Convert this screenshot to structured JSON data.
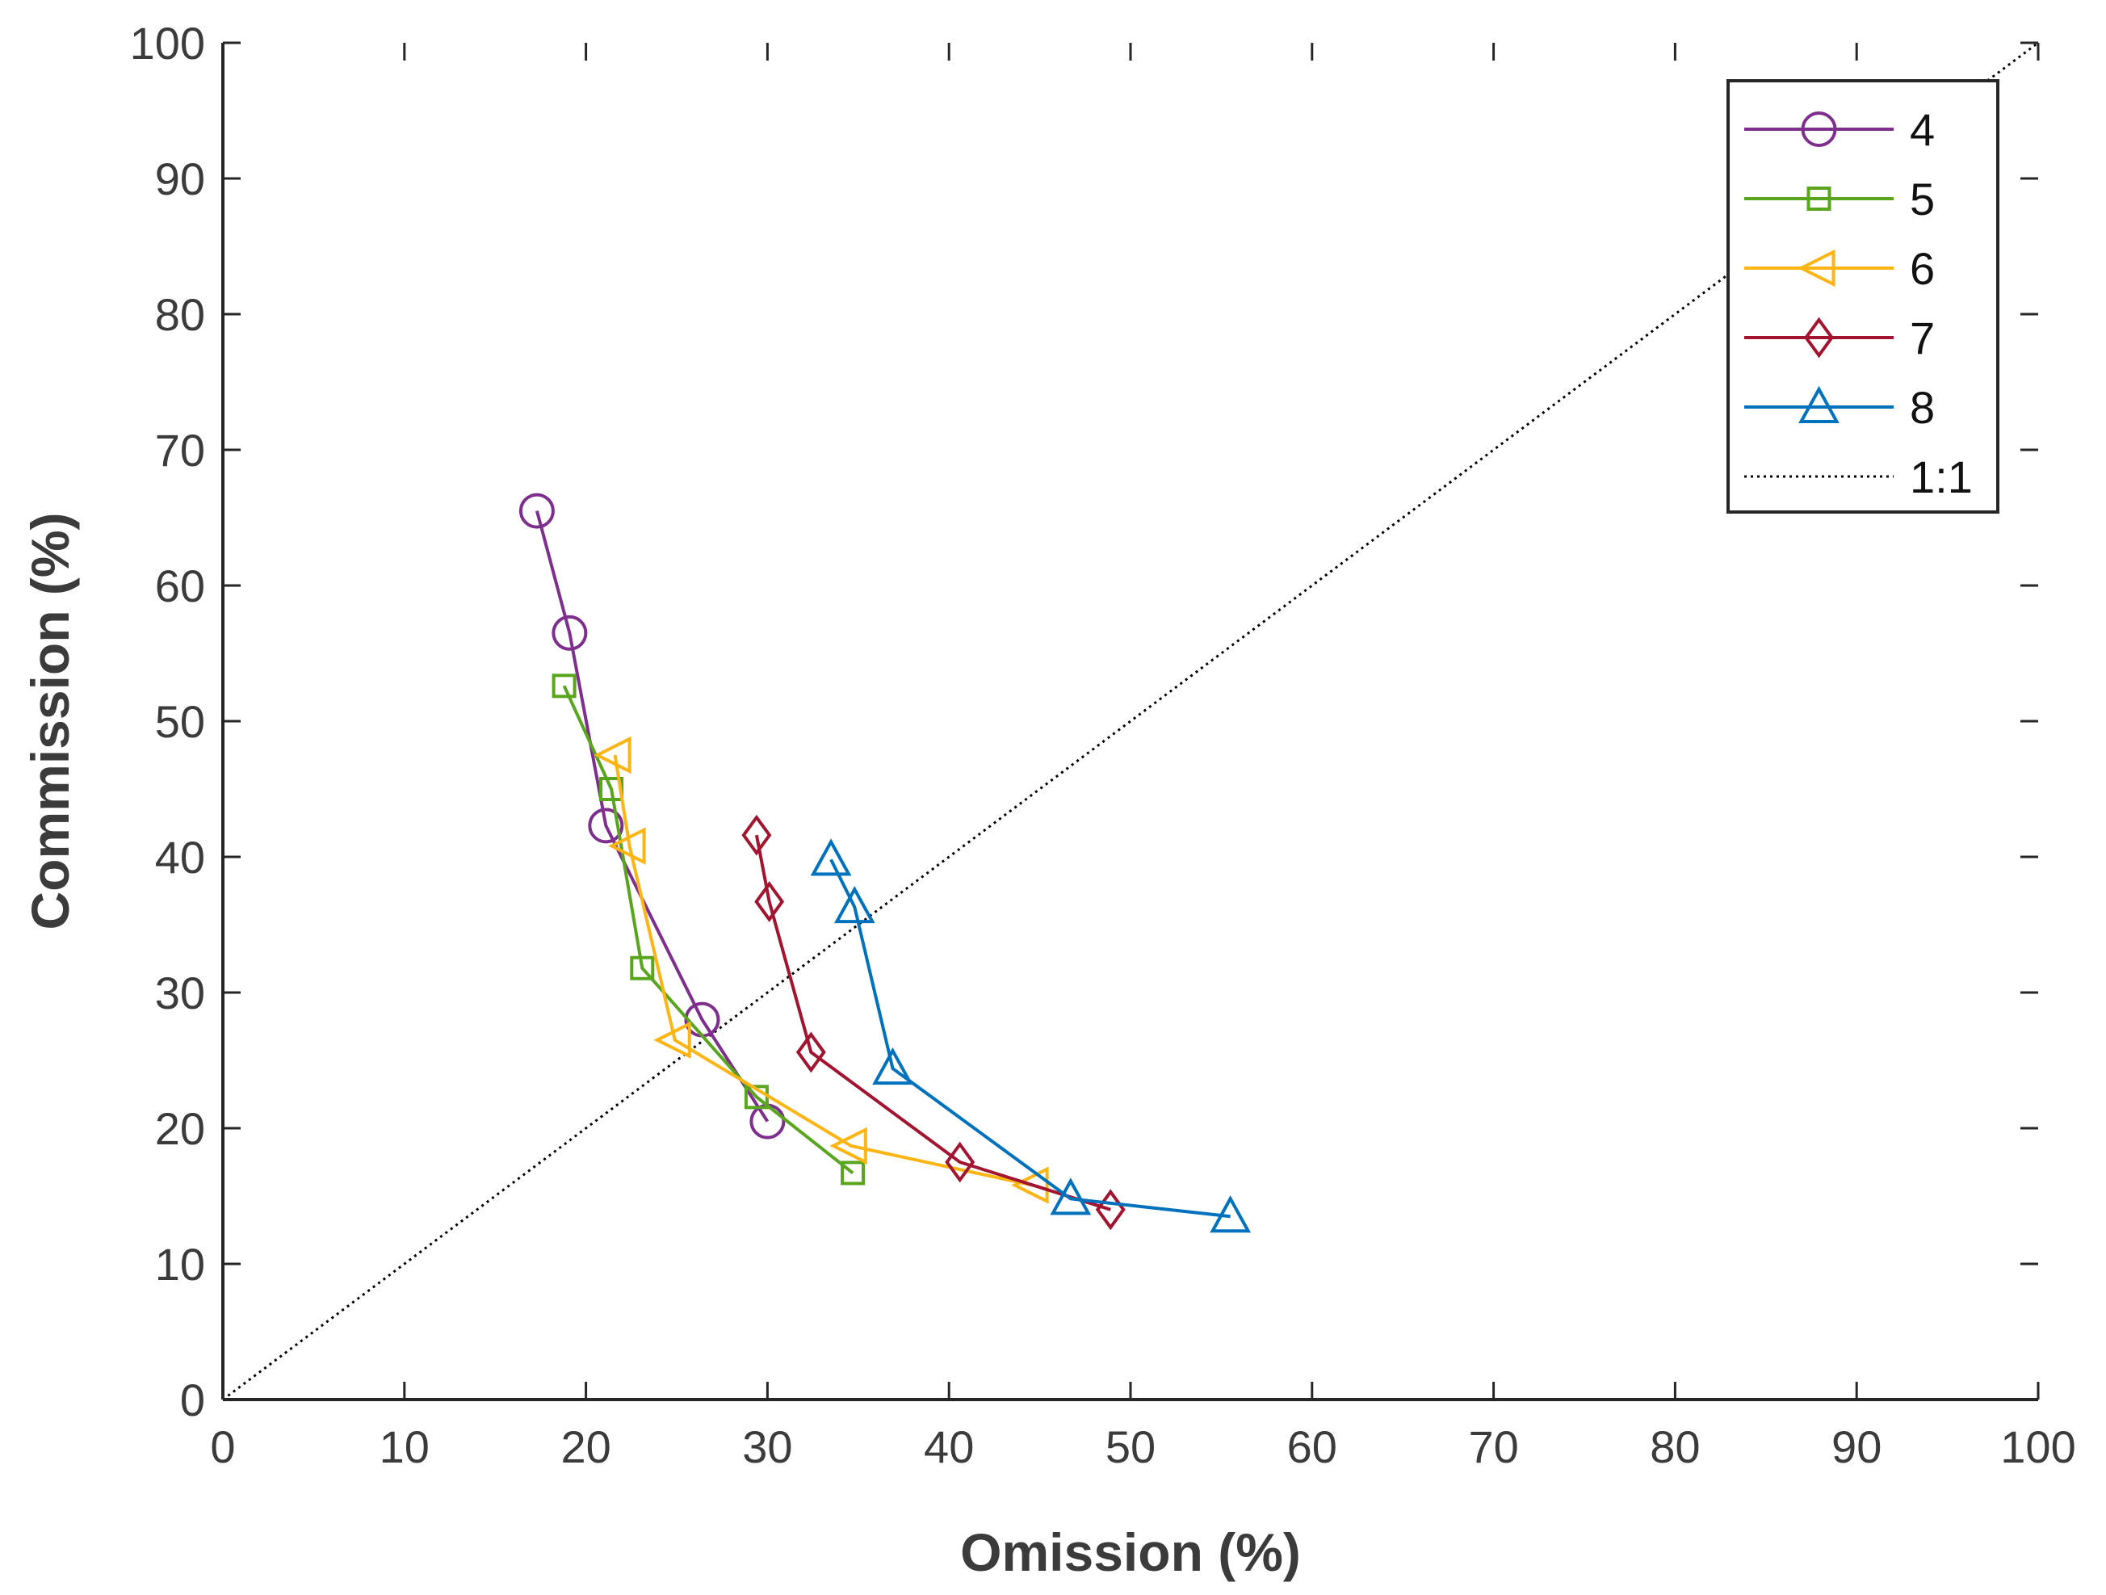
{
  "chart_data": {
    "type": "line",
    "title": "",
    "xlabel": "Omission (%)",
    "ylabel": "Commission (%)",
    "xlim": [
      0,
      100
    ],
    "ylim": [
      0,
      100
    ],
    "xticks": [
      0,
      10,
      20,
      30,
      40,
      50,
      60,
      70,
      80,
      90,
      100
    ],
    "yticks": [
      0,
      10,
      20,
      30,
      40,
      50,
      60,
      70,
      80,
      90,
      100
    ],
    "xtick_labels": [
      "0",
      "10",
      "20",
      "30",
      "40",
      "50",
      "60",
      "70",
      "80",
      "90",
      "100"
    ],
    "ytick_labels": [
      "0",
      "10",
      "20",
      "30",
      "40",
      "50",
      "60",
      "70",
      "80",
      "90",
      "100"
    ],
    "grid": false,
    "legend_position": "top-right",
    "series": [
      {
        "name": "4",
        "marker": "circle",
        "color": "#7e2f8e",
        "points": [
          [
            17.3,
            65.5
          ],
          [
            19.1,
            56.5
          ],
          [
            21.1,
            42.3
          ],
          [
            26.4,
            28.0
          ],
          [
            30.0,
            20.5
          ]
        ]
      },
      {
        "name": "5",
        "marker": "square",
        "color": "#59a61e",
        "points": [
          [
            18.8,
            52.6
          ],
          [
            21.4,
            45.0
          ],
          [
            23.1,
            31.8
          ],
          [
            29.4,
            22.3
          ],
          [
            34.7,
            16.7
          ]
        ]
      },
      {
        "name": "6",
        "marker": "triangle-left",
        "color": "#fdb515",
        "points": [
          [
            21.6,
            47.5
          ],
          [
            22.4,
            40.8
          ],
          [
            24.9,
            26.5
          ],
          [
            34.6,
            18.7
          ],
          [
            44.6,
            15.8
          ]
        ]
      },
      {
        "name": "7",
        "marker": "diamond",
        "color": "#a2142f",
        "points": [
          [
            29.4,
            41.6
          ],
          [
            30.1,
            36.7
          ],
          [
            32.4,
            25.6
          ],
          [
            40.6,
            17.5
          ],
          [
            48.9,
            14.0
          ]
        ]
      },
      {
        "name": "8",
        "marker": "triangle-up",
        "color": "#0072bd",
        "points": [
          [
            33.5,
            39.8
          ],
          [
            34.8,
            36.3
          ],
          [
            36.9,
            24.4
          ],
          [
            46.7,
            14.8
          ],
          [
            55.5,
            13.5
          ]
        ]
      }
    ],
    "reference_line": {
      "name": "1:1",
      "style": "dotted",
      "color": "#000000",
      "points": [
        [
          0,
          0
        ],
        [
          100,
          100
        ]
      ]
    }
  }
}
